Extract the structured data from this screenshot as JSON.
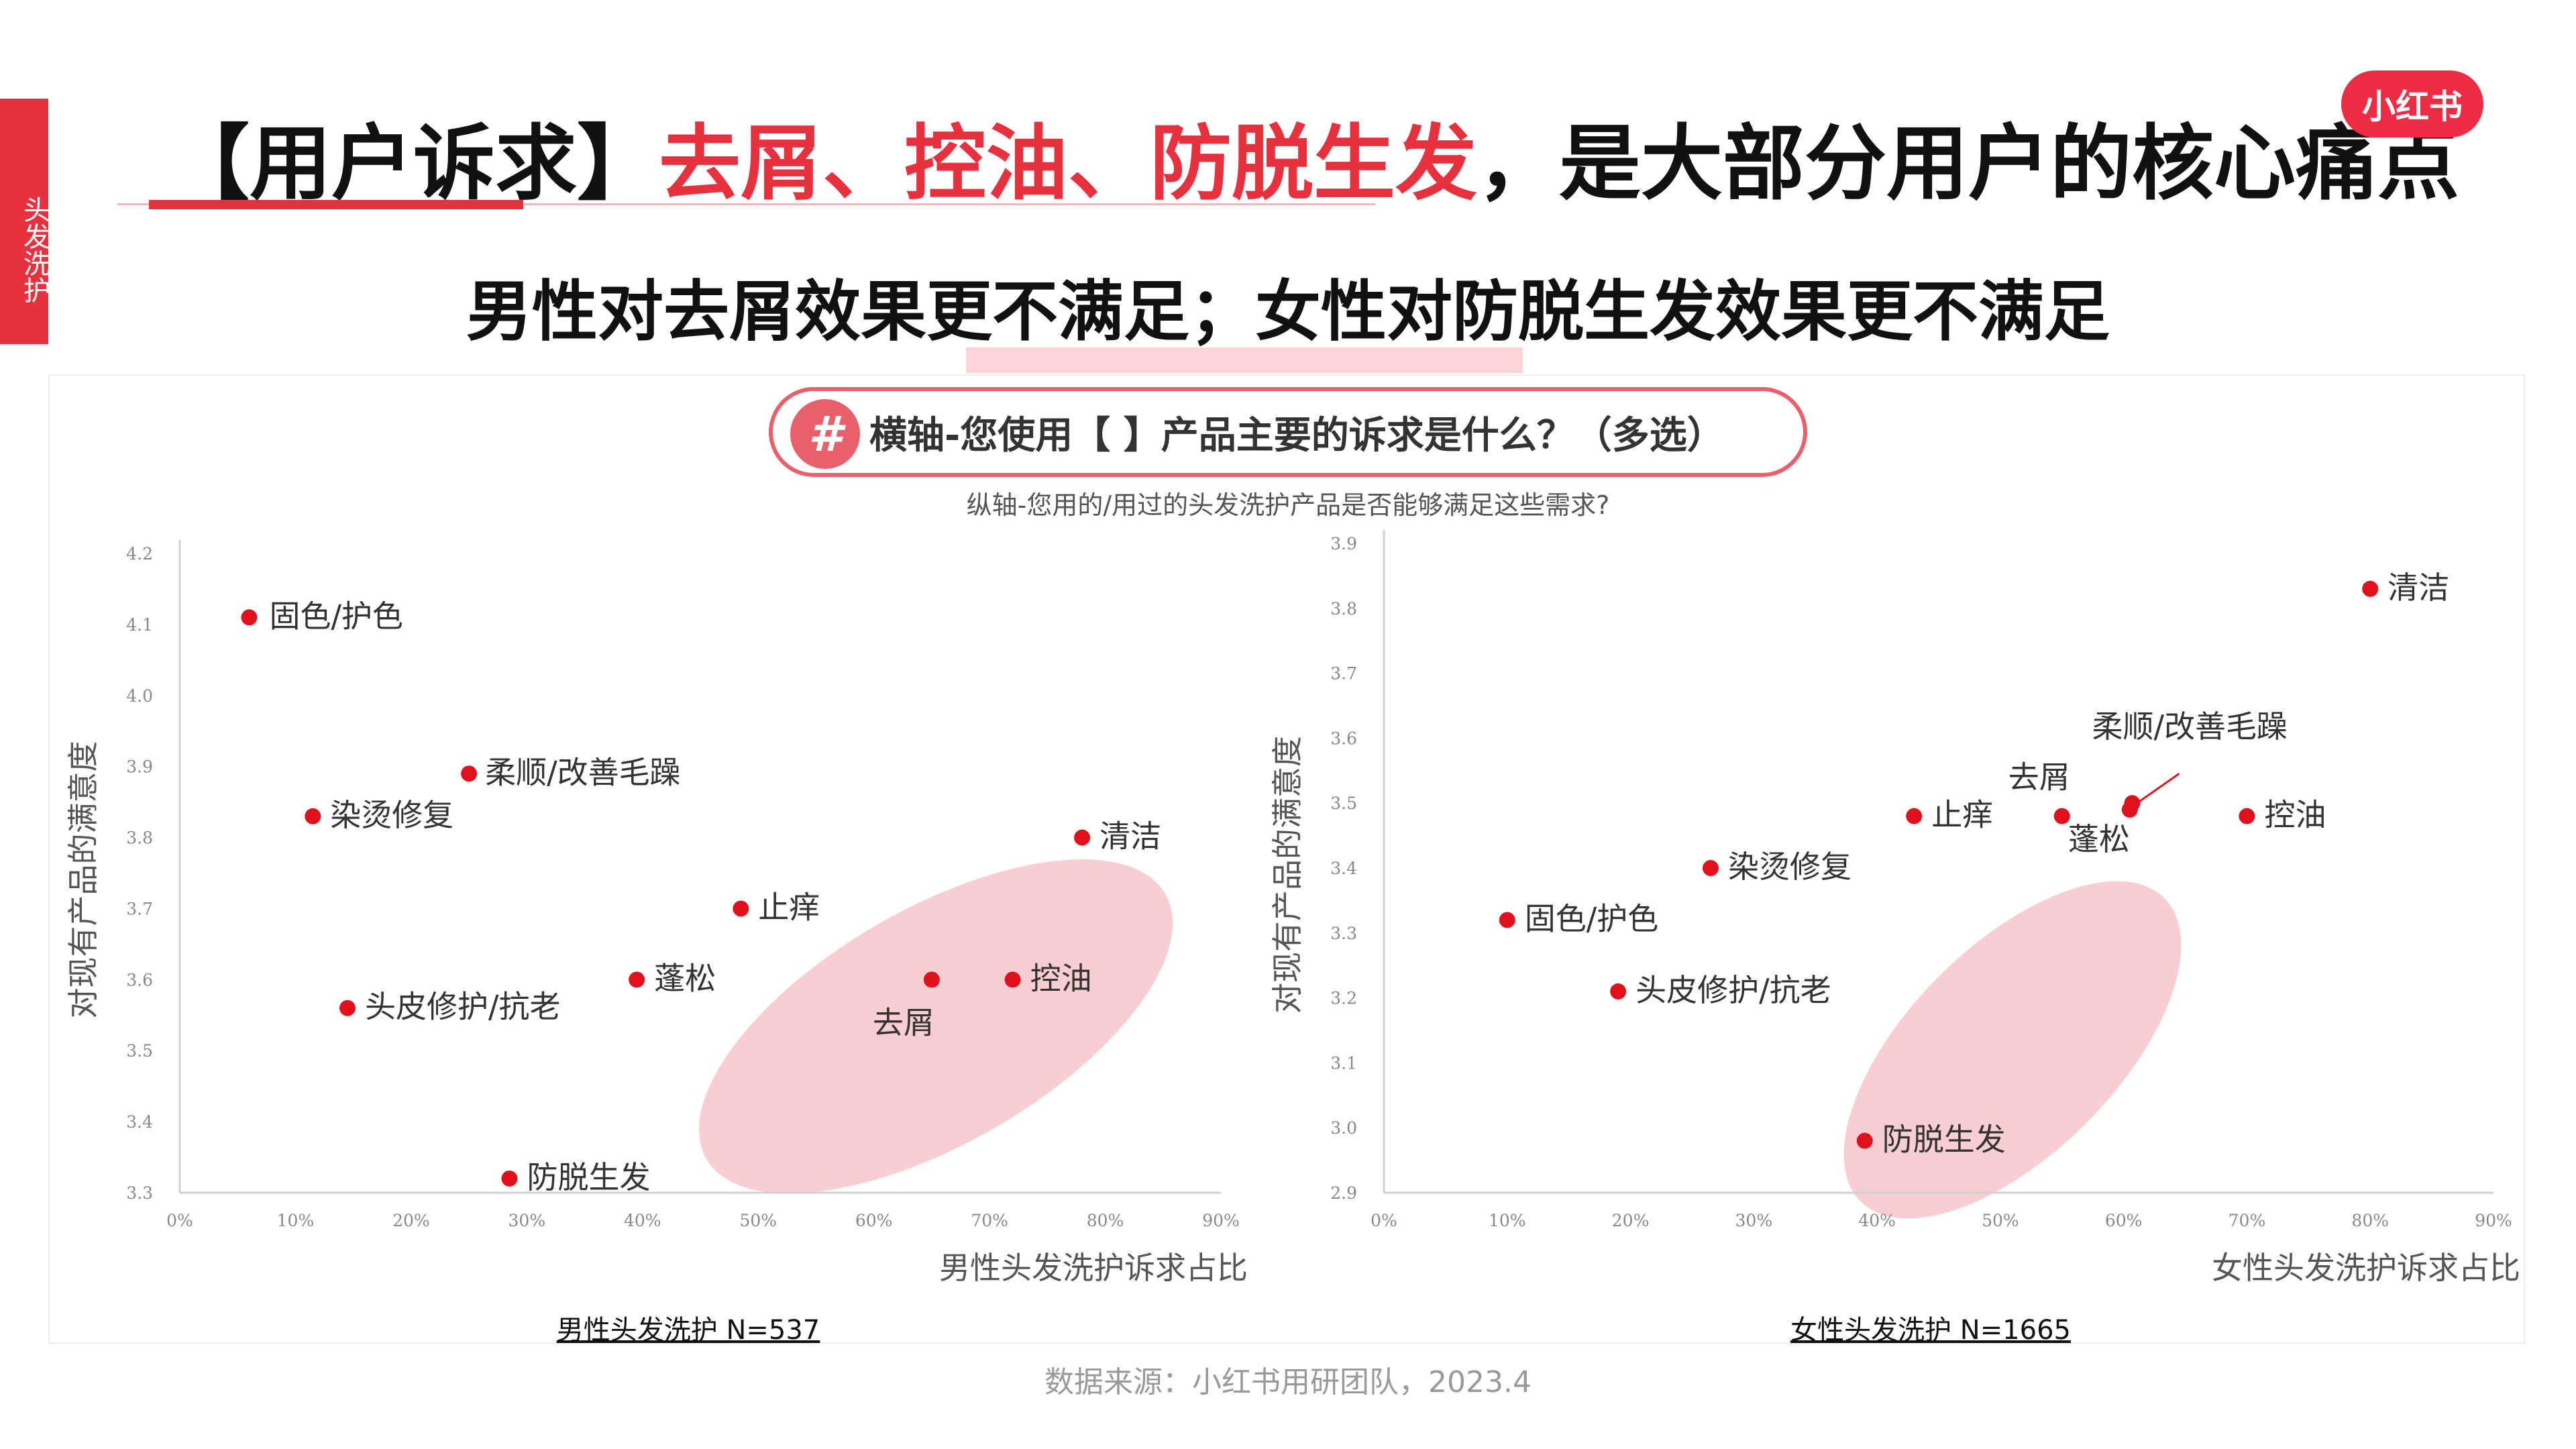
{
  "side_tab": "头发洗护",
  "logo": "小红书",
  "headline": {
    "prefix": "【用户诉求】",
    "highlight": "去屑、控油、防脱生发",
    "suffix": "，是大部分用户的核心痛点"
  },
  "subheadline": "男性对去屑效果更不满足；女性对防脱生发效果更不满足",
  "question": {
    "hash": "#",
    "x_axis_question": "横轴-您使用【 】产品主要的诉求是什么？（多选）",
    "y_axis_question": "纵轴-您用的/用过的头发洗护产品是否能够满足这些需求?"
  },
  "colors": {
    "accent": "#e8313f",
    "point": "#e0101c",
    "ellipse": "#f7c5c8"
  },
  "chart_data": [
    {
      "type": "scatter",
      "caption": "男性头发洗护 N=537",
      "xlabel": "男性头发洗护诉求占比",
      "ylabel": "对现有产品的满意度",
      "xlim": [
        0,
        0.9
      ],
      "ylim": [
        3.3,
        4.2
      ],
      "xticks": [
        "0%",
        "10%",
        "20%",
        "30%",
        "40%",
        "50%",
        "60%",
        "70%",
        "80%",
        "90%"
      ],
      "yticks": [
        "3.3",
        "3.4",
        "3.5",
        "3.6",
        "3.7",
        "3.8",
        "3.9",
        "4.0",
        "4.1",
        "4.2"
      ],
      "grid": false,
      "highlight": "去屑、控油 (ellipse)",
      "points": [
        {
          "label": "固色/护色",
          "x": 0.06,
          "y": 4.11
        },
        {
          "label": "柔顺/改善毛躁",
          "x": 0.25,
          "y": 3.89
        },
        {
          "label": "染烫修复",
          "x": 0.115,
          "y": 3.83
        },
        {
          "label": "清洁",
          "x": 0.78,
          "y": 3.8
        },
        {
          "label": "止痒",
          "x": 0.485,
          "y": 3.7
        },
        {
          "label": "蓬松",
          "x": 0.395,
          "y": 3.6
        },
        {
          "label": "去屑",
          "x": 0.65,
          "y": 3.6
        },
        {
          "label": "控油",
          "x": 0.72,
          "y": 3.6
        },
        {
          "label": "头皮修护/抗老",
          "x": 0.145,
          "y": 3.56
        },
        {
          "label": "防脱生发",
          "x": 0.285,
          "y": 3.32
        }
      ]
    },
    {
      "type": "scatter",
      "caption": "女性头发洗护 N=1665",
      "xlabel": "女性头发洗护诉求占比",
      "ylabel": "对现有产品的满意度",
      "xlim": [
        0,
        0.9
      ],
      "ylim": [
        2.9,
        3.9
      ],
      "xticks": [
        "0%",
        "10%",
        "20%",
        "30%",
        "40%",
        "50%",
        "60%",
        "70%",
        "80%",
        "90%"
      ],
      "yticks": [
        "2.9",
        "3.0",
        "3.1",
        "3.2",
        "3.3",
        "3.4",
        "3.5",
        "3.6",
        "3.7",
        "3.8",
        "3.9"
      ],
      "grid": false,
      "highlight": "防脱生发 (ellipse)",
      "points": [
        {
          "label": "清洁",
          "x": 0.8,
          "y": 3.83
        },
        {
          "label": "柔顺/改善毛躁",
          "x": 0.607,
          "y": 3.5
        },
        {
          "label": "去屑",
          "x": 0.55,
          "y": 3.48
        },
        {
          "label": "止痒",
          "x": 0.43,
          "y": 3.48
        },
        {
          "label": "控油",
          "x": 0.7,
          "y": 3.48
        },
        {
          "label": "蓬松",
          "x": 0.605,
          "y": 3.49
        },
        {
          "label": "染烫修复",
          "x": 0.265,
          "y": 3.4
        },
        {
          "label": "固色/护色",
          "x": 0.1,
          "y": 3.32
        },
        {
          "label": "头皮修护/抗老",
          "x": 0.19,
          "y": 3.21
        },
        {
          "label": "防脱生发",
          "x": 0.39,
          "y": 2.98
        }
      ]
    }
  ],
  "source": "数据来源：小红书用研团队，2023.4"
}
